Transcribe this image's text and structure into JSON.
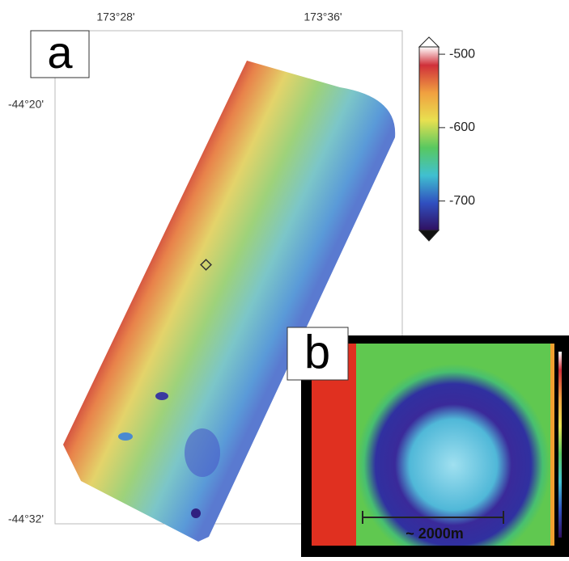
{
  "panel_a": {
    "label": "a",
    "lon_labels": [
      "173°28'",
      "173°36'"
    ],
    "lat_labels": [
      "-44°20'",
      "-44°32'"
    ]
  },
  "colorbar": {
    "lim": [
      -490,
      -740
    ],
    "ticks": [
      -500,
      -600,
      -700
    ]
  },
  "panel_b": {
    "label": "b",
    "scale_label": "~ 2000m"
  }
}
